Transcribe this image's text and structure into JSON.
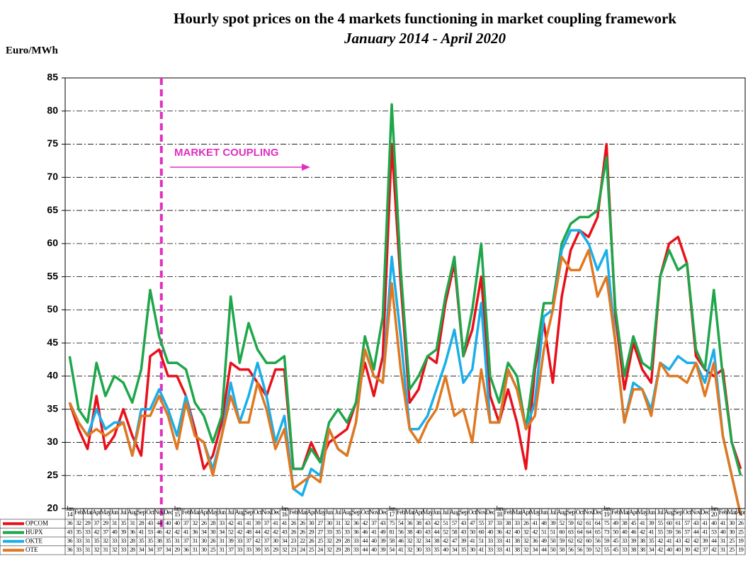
{
  "chart_data": {
    "type": "line",
    "title": "Hourly spot prices on the 4 markets functioning in market coupling framework",
    "subtitle": "January 2014 - April 2020",
    "y_label": "Euro/MWh",
    "annotation": "MARKET COUPLING",
    "ylim": [
      20,
      85
    ],
    "yticks": [
      20,
      25,
      30,
      35,
      40,
      45,
      50,
      55,
      60,
      65,
      70,
      75,
      80,
      85
    ],
    "grid": true,
    "categories": [
      "Jan 14",
      "Feb",
      "Mar",
      "Apr",
      "May",
      "Jun",
      "Jul",
      "Aug",
      "Sep",
      "Oct",
      "Nov",
      "Dec",
      "Jan 15",
      "Feb",
      "Mar",
      "Apr",
      "May",
      "Jun",
      "Jul",
      "Aug",
      "Sep",
      "Oct",
      "Nov",
      "Dec",
      "Jan 16",
      "Feb",
      "Mar",
      "Apr",
      "May",
      "Jun",
      "Jul",
      "Aug",
      "Sep",
      "Oct",
      "Nov",
      "Dec",
      "Jan 17",
      "Feb",
      "Mar",
      "Apr",
      "May",
      "Jun",
      "Jul",
      "Aug",
      "Sep",
      "Oct",
      "Nov",
      "Dec",
      "Jan 18",
      "Feb",
      "Mar",
      "Apr",
      "May",
      "Jun",
      "Jul",
      "Aug",
      "Sep",
      "Oct",
      "Nov",
      "Dec",
      "Jan 19",
      "Feb",
      "Mar",
      "Apr",
      "May",
      "Jun",
      "Jul",
      "Aug",
      "Sep",
      "Oct",
      "Nov",
      "Dec",
      "Jan 20",
      "Feb",
      "Mar",
      "Apr"
    ],
    "series": [
      {
        "name": "OPCOM",
        "color": "#e8101a",
        "values": [
          36,
          32,
          29,
          37,
          29,
          31,
          35,
          31,
          28,
          43,
          44,
          40,
          40,
          37,
          32,
          26,
          28,
          33,
          42,
          41,
          41,
          39,
          37,
          41,
          41,
          26,
          26,
          30,
          27,
          30,
          31,
          32,
          36,
          42,
          37,
          43,
          75,
          54,
          36,
          38,
          43,
          42,
          51,
          57,
          43,
          47,
          55,
          37,
          33,
          38,
          33,
          26,
          41,
          48,
          39,
          52,
          59,
          62,
          61,
          64,
          75,
          49,
          38,
          45,
          41,
          39,
          55,
          60,
          61,
          57,
          43,
          41,
          40,
          41,
          30,
          26
        ]
      },
      {
        "name": "HUPX",
        "color": "#1fa64a",
        "values": [
          43,
          35,
          33,
          42,
          37,
          40,
          39,
          36,
          41,
          53,
          46,
          42,
          42,
          41,
          36,
          34,
          30,
          34,
          52,
          42,
          48,
          44,
          42,
          42,
          43,
          26,
          26,
          29,
          27,
          33,
          35,
          33,
          36,
          46,
          41,
          49,
          81,
          56,
          38,
          40,
          43,
          44,
          52,
          58,
          43,
          50,
          60,
          40,
          36,
          42,
          40,
          32,
          42,
          51,
          51,
          60,
          63,
          64,
          64,
          65,
          73,
          50,
          40,
          46,
          42,
          41,
          55,
          59,
          56,
          57,
          44,
          41,
          53,
          40,
          30,
          25
        ]
      },
      {
        "name": "OKTE",
        "color": "#1aaee8",
        "values": [
          36,
          33,
          31,
          35,
          32,
          33,
          33,
          28,
          35,
          35,
          38,
          35,
          31,
          37,
          31,
          30,
          26,
          31,
          39,
          33,
          37,
          42,
          37,
          30,
          34,
          23,
          22,
          26,
          25,
          32,
          29,
          28,
          33,
          44,
          40,
          39,
          58,
          46,
          32,
          32,
          34,
          38,
          42,
          47,
          39,
          41,
          51,
          33,
          33,
          41,
          38,
          32,
          36,
          49,
          50,
          59,
          62,
          62,
          60,
          56,
          59,
          45,
          33,
          39,
          38,
          35,
          42,
          41,
          43,
          42,
          42,
          39,
          44,
          31,
          25,
          19
        ]
      },
      {
        "name": "OTE",
        "color": "#e07820",
        "values": [
          36,
          33,
          31,
          32,
          31,
          32,
          33,
          28,
          34,
          34,
          37,
          34,
          29,
          36,
          31,
          30,
          25,
          31,
          37,
          33,
          33,
          39,
          35,
          29,
          32,
          23,
          24,
          25,
          24,
          32,
          29,
          28,
          33,
          44,
          40,
          39,
          54,
          41,
          32,
          30,
          33,
          35,
          40,
          34,
          35,
          30,
          41,
          33,
          33,
          41,
          38,
          32,
          34,
          44,
          50,
          58,
          56,
          56,
          59,
          52,
          55,
          45,
          33,
          38,
          38,
          34,
          42,
          40,
          40,
          39,
          42,
          37,
          42,
          31,
          25,
          19
        ]
      }
    ]
  }
}
